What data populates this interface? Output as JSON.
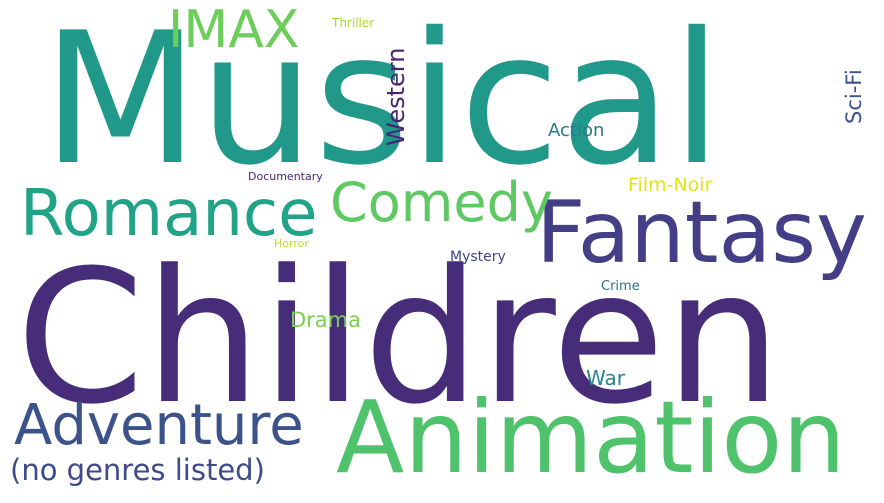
{
  "word_cloud": {
    "words": [
      {
        "id": "musical",
        "text": "Musical",
        "color": "#21998a",
        "orientation": "horizontal"
      },
      {
        "id": "children",
        "text": "Children",
        "color": "#472c7a",
        "orientation": "horizontal"
      },
      {
        "id": "animation",
        "text": "Animation",
        "color": "#4ec36b",
        "orientation": "horizontal"
      },
      {
        "id": "fantasy",
        "text": "Fantasy",
        "color": "#433e85",
        "orientation": "horizontal"
      },
      {
        "id": "romance",
        "text": "Romance",
        "color": "#20a386",
        "orientation": "horizontal"
      },
      {
        "id": "adventure",
        "text": "Adventure",
        "color": "#3b528b",
        "orientation": "horizontal"
      },
      {
        "id": "comedy",
        "text": "Comedy",
        "color": "#5ec962",
        "orientation": "horizontal"
      },
      {
        "id": "imax",
        "text": "IMAX",
        "color": "#6ccd5a",
        "orientation": "horizontal"
      },
      {
        "id": "no-genres",
        "text": "(no genres listed)",
        "color": "#3e4a89",
        "orientation": "horizontal"
      },
      {
        "id": "western",
        "text": "Western",
        "color": "#482475",
        "orientation": "vertical"
      },
      {
        "id": "sci-fi",
        "text": "Sci-Fi",
        "color": "#3b528b",
        "orientation": "vertical"
      },
      {
        "id": "action",
        "text": "Action",
        "color": "#2a788e",
        "orientation": "horizontal"
      },
      {
        "id": "film-noir",
        "text": "Film-Noir",
        "color": "#e5e419",
        "orientation": "horizontal"
      },
      {
        "id": "drama",
        "text": "Drama",
        "color": "#7ad151",
        "orientation": "horizontal"
      },
      {
        "id": "war",
        "text": "War",
        "color": "#25848e",
        "orientation": "horizontal"
      },
      {
        "id": "thriller",
        "text": "Thriller",
        "color": "#a5db36",
        "orientation": "horizontal"
      },
      {
        "id": "documentary",
        "text": "Documentary",
        "color": "#482878",
        "orientation": "horizontal"
      },
      {
        "id": "horror",
        "text": "Horror",
        "color": "#bddf26",
        "orientation": "horizontal"
      },
      {
        "id": "mystery",
        "text": "Mystery",
        "color": "#414487",
        "orientation": "horizontal"
      },
      {
        "id": "crime",
        "text": "Crime",
        "color": "#2c728e",
        "orientation": "horizontal"
      }
    ]
  }
}
